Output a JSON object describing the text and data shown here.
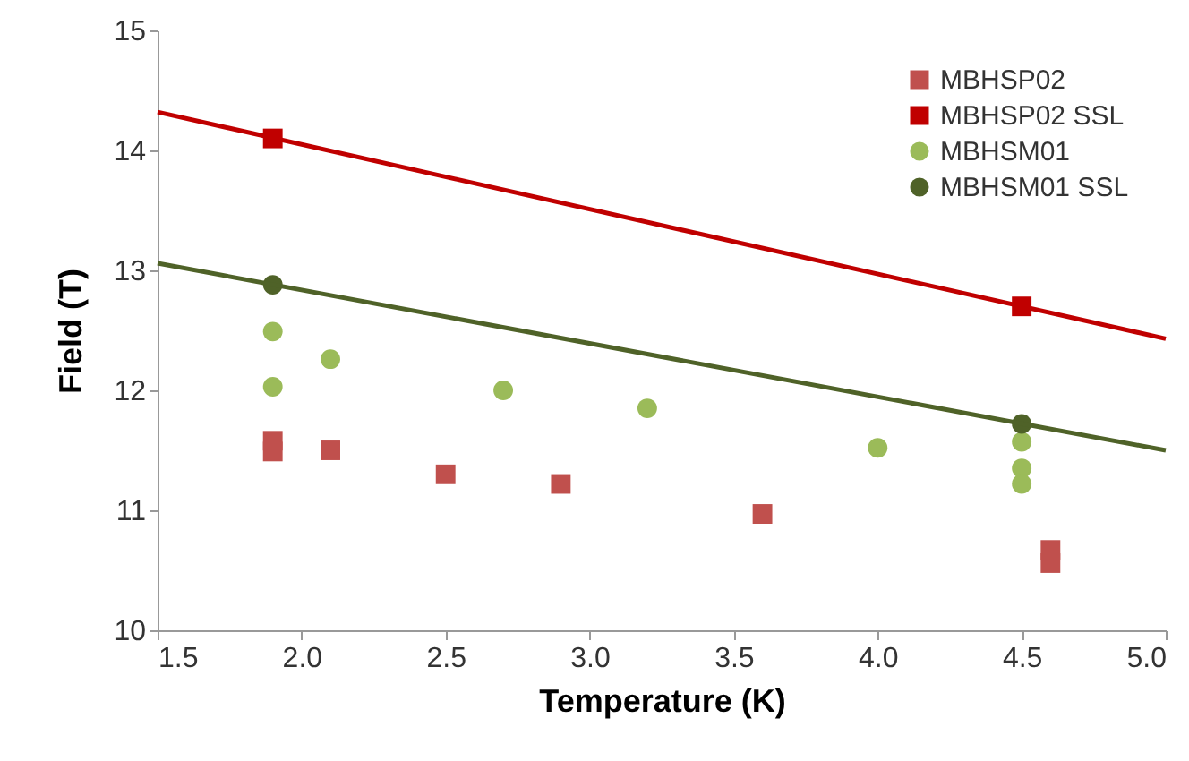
{
  "chart_data": {
    "type": "scatter",
    "xlabel": "Temperature (K)",
    "ylabel": "Field (T)",
    "xlim": [
      1.5,
      5.0
    ],
    "ylim": [
      10,
      15
    ],
    "xticks": [
      {
        "value": 1.5,
        "label": "1.5"
      },
      {
        "value": 2,
        "label": "2.0"
      },
      {
        "value": 2.5,
        "label": "2.5"
      },
      {
        "value": 3,
        "label": "3.0"
      },
      {
        "value": 3.5,
        "label": "3.5"
      },
      {
        "value": 4,
        "label": "4.0"
      },
      {
        "value": 4.5,
        "label": "4.5"
      },
      {
        "value": 5,
        "label": "5.0"
      }
    ],
    "yticks": [
      10,
      11,
      12,
      13,
      14,
      15
    ],
    "grid": false,
    "legend": "top right",
    "series": [
      {
        "name": "MBHSP02",
        "color": "#c0504d",
        "marker": "square",
        "x": [
          1.9,
          1.9,
          2.1,
          2.5,
          2.9,
          3.6,
          4.6,
          4.6
        ],
        "values": [
          11.58,
          11.49,
          11.5,
          11.3,
          11.22,
          10.97,
          10.67,
          10.56
        ]
      },
      {
        "name": "MBHSP02 SSL",
        "color": "#c00000",
        "marker": "square",
        "x": [
          1.9,
          4.5
        ],
        "values": [
          14.1,
          12.7
        ]
      },
      {
        "name": "MBHSM01",
        "color": "#9bbb59",
        "marker": "circle",
        "x": [
          1.9,
          1.9,
          2.1,
          2.7,
          3.2,
          4.0,
          4.5,
          4.5,
          4.5
        ],
        "values": [
          12.49,
          12.03,
          12.26,
          12.0,
          11.85,
          11.52,
          11.57,
          11.35,
          11.22
        ]
      },
      {
        "name": "MBHSM01 SSL",
        "color": "#4f6228",
        "marker": "circle",
        "x": [
          1.9,
          4.5
        ],
        "values": [
          12.88,
          11.72
        ]
      },
      {
        "type": "line",
        "color": "#c00000",
        "marker": "none",
        "x": [
          1.5,
          5.0
        ],
        "values": [
          14.32,
          12.43
        ]
      },
      {
        "type": "line",
        "color": "#4f6228",
        "marker": "none",
        "x": [
          1.5,
          5.0
        ],
        "values": [
          13.06,
          11.5
        ]
      }
    ]
  }
}
